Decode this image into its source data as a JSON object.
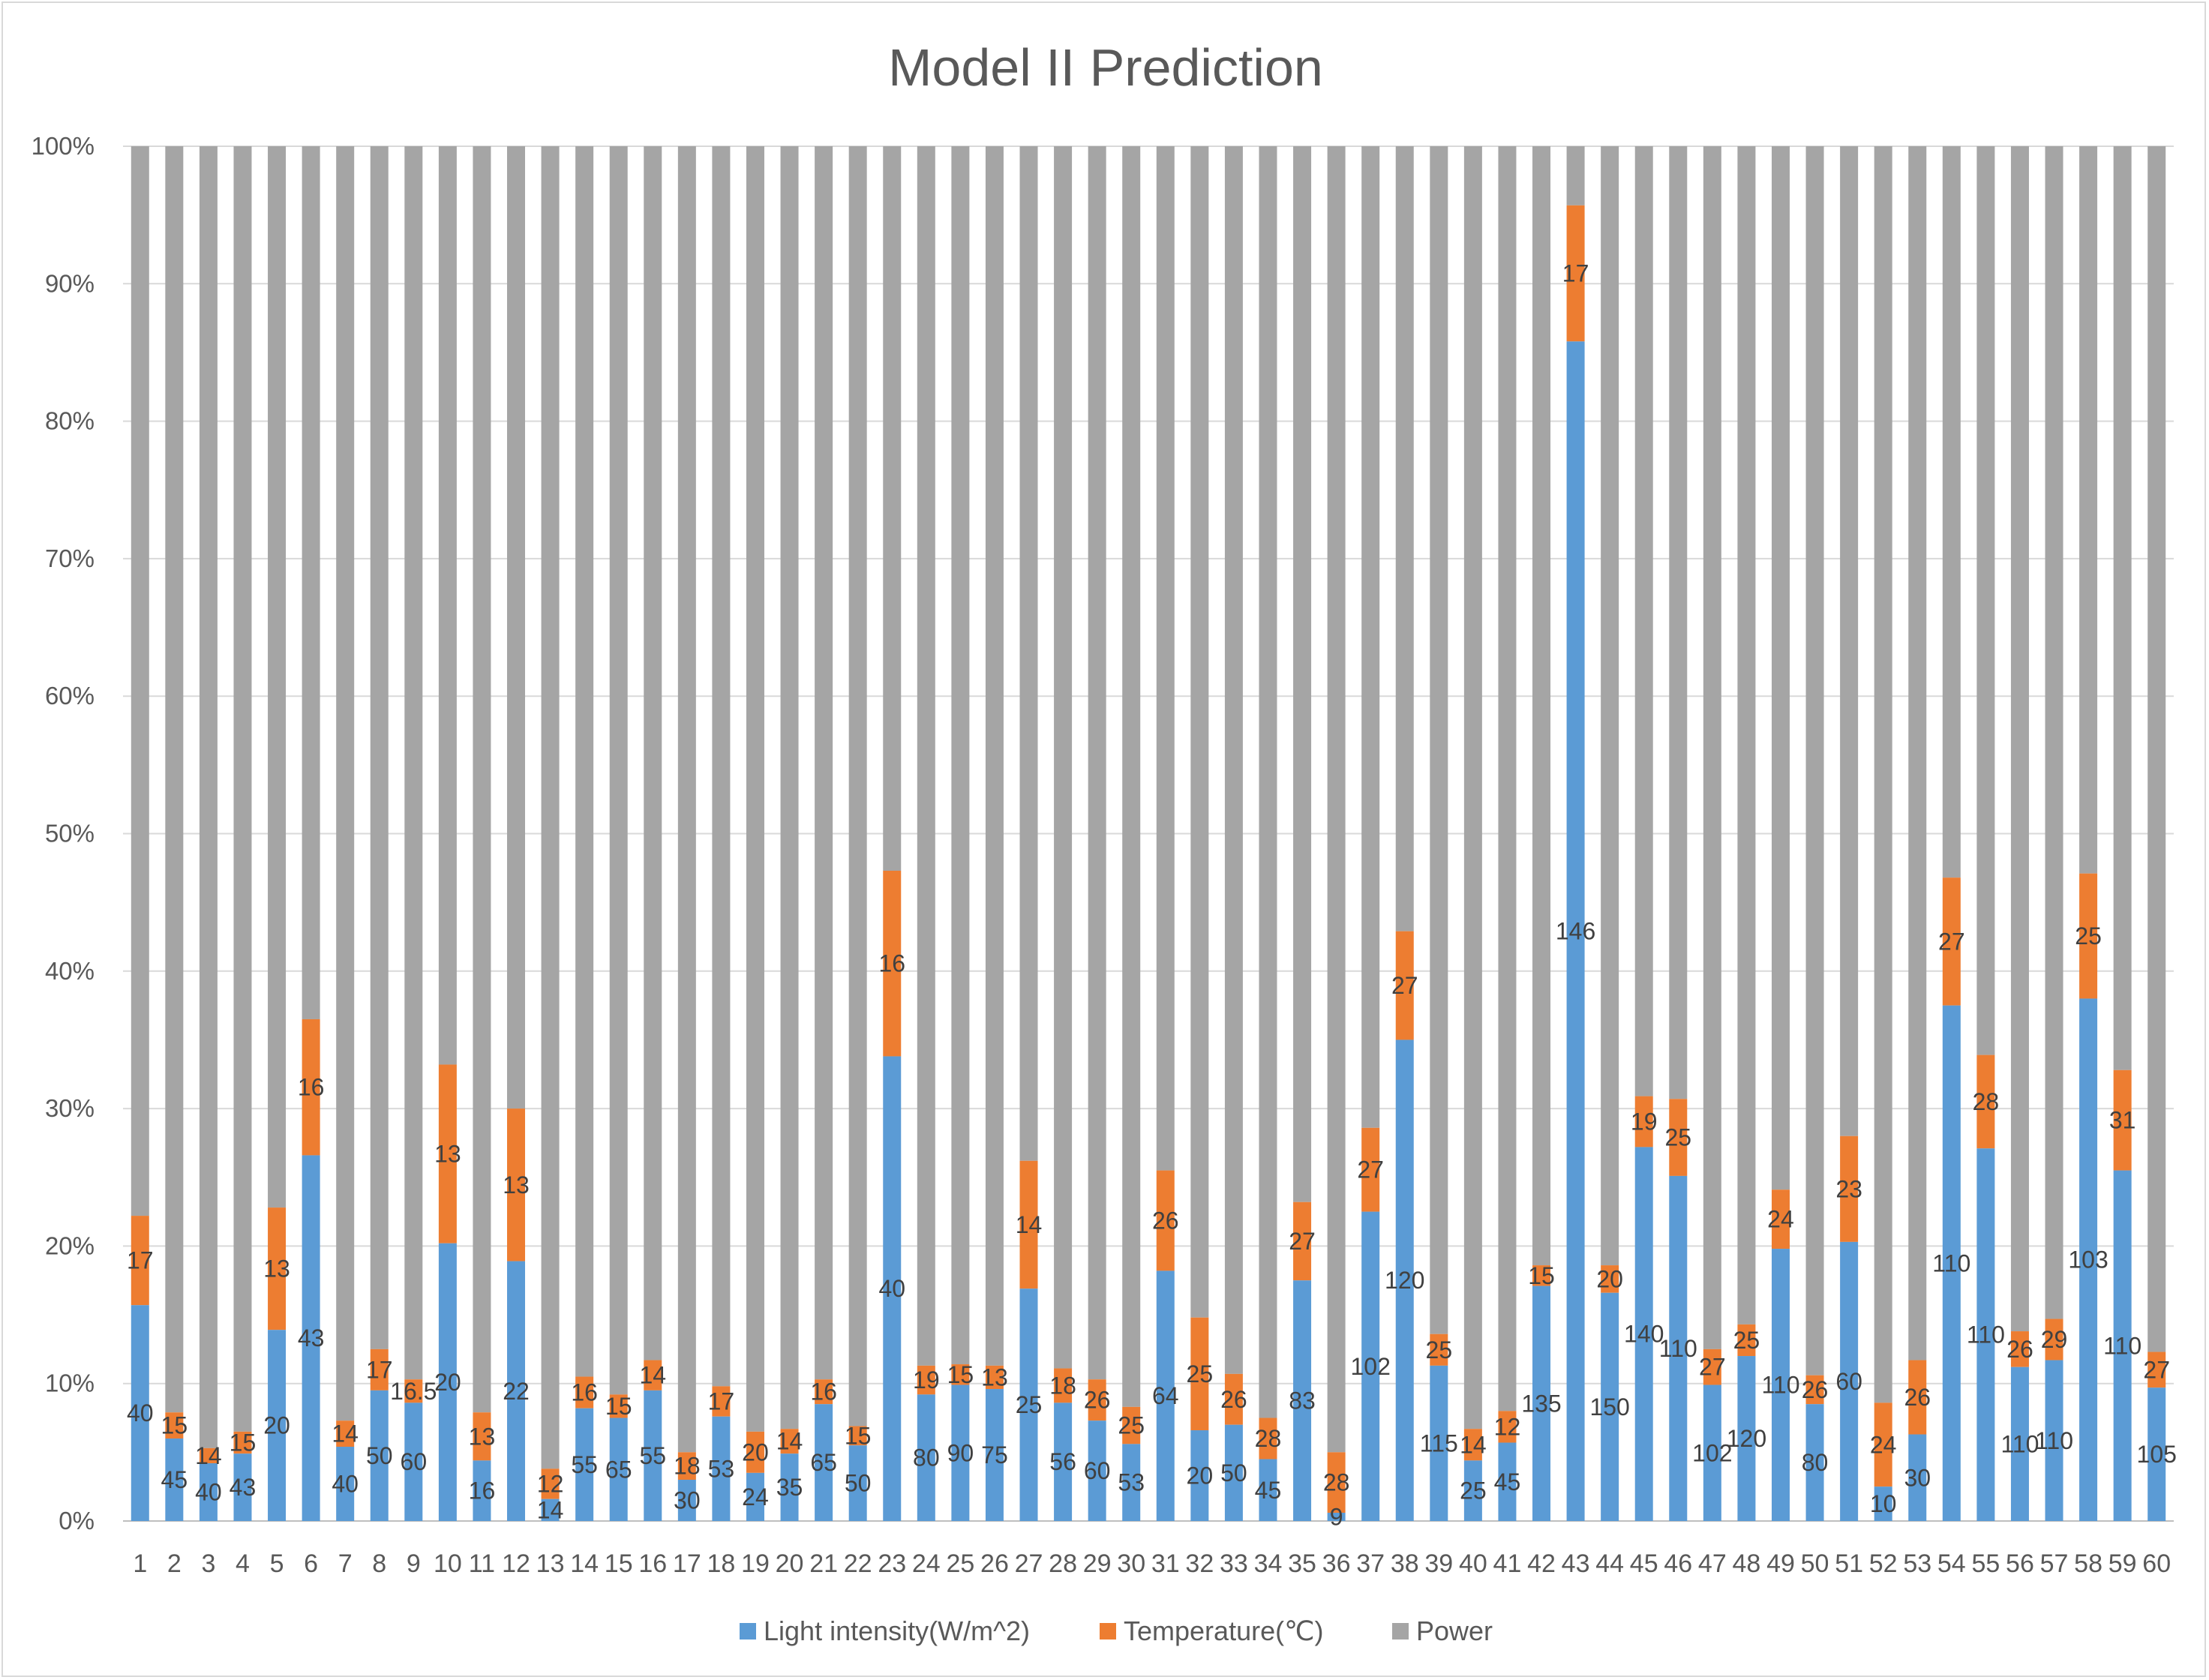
{
  "chart_data": {
    "type": "bar",
    "stacked": true,
    "normalized": true,
    "title": "Model II Prediction",
    "xlabel": "",
    "ylabel": "",
    "ylim": [
      0,
      100
    ],
    "yticks": [
      "0%",
      "10%",
      "20%",
      "30%",
      "40%",
      "50%",
      "60%",
      "70%",
      "80%",
      "90%",
      "100%"
    ],
    "grid": true,
    "legend_position": "bottom",
    "categories": [
      "1",
      "2",
      "3",
      "4",
      "5",
      "6",
      "7",
      "8",
      "9",
      "10",
      "11",
      "12",
      "13",
      "14",
      "15",
      "16",
      "17",
      "18",
      "19",
      "20",
      "21",
      "22",
      "23",
      "24",
      "25",
      "26",
      "27",
      "28",
      "29",
      "30",
      "31",
      "32",
      "33",
      "34",
      "35",
      "36",
      "37",
      "38",
      "39",
      "40",
      "41",
      "42",
      "43",
      "44",
      "45",
      "46",
      "47",
      "48",
      "49",
      "50",
      "51",
      "52",
      "53",
      "54",
      "55",
      "56",
      "57",
      "58",
      "59",
      "60"
    ],
    "series": [
      {
        "name": "Light intensity(W/m^2)",
        "color": "#5b9bd5",
        "labels": [
          "40",
          "45",
          "40",
          "43",
          "20",
          "43",
          "40",
          "50",
          "60",
          "20",
          "16",
          "22",
          "14",
          "55",
          "65",
          "55",
          "30",
          "53",
          "24",
          "35",
          "65",
          "50",
          "40",
          "80",
          "90",
          "75",
          "25",
          "56",
          "60",
          "53",
          "64",
          "20",
          "50",
          "45",
          "83",
          "9",
          "102",
          "120",
          "115",
          "25",
          "45",
          "135",
          "146",
          "150",
          "140",
          "110",
          "102",
          "120",
          "110",
          "80",
          "60",
          "10",
          "30",
          "110",
          "110",
          "110",
          "110",
          "103",
          "110",
          "105"
        ],
        "percent": [
          15.7,
          6.0,
          4.2,
          4.9,
          13.9,
          26.6,
          5.4,
          9.5,
          8.6,
          20.2,
          4.4,
          18.9,
          1.6,
          8.2,
          7.5,
          9.5,
          3.0,
          7.6,
          3.5,
          4.9,
          8.5,
          5.5,
          33.8,
          9.2,
          9.9,
          9.6,
          16.9,
          8.6,
          7.3,
          5.6,
          18.2,
          6.6,
          7.0,
          4.5,
          17.5,
          0.6,
          22.5,
          35.0,
          11.3,
          4.4,
          5.7,
          17.1,
          85.8,
          16.6,
          27.2,
          25.1,
          9.9,
          12.0,
          19.8,
          8.5,
          20.3,
          2.5,
          6.3,
          37.5,
          27.1,
          11.2,
          11.7,
          38.0,
          25.5,
          9.7
        ]
      },
      {
        "name": "Temperature(℃)",
        "color": "#ed7d31",
        "labels": [
          "17",
          "15",
          "14",
          "15",
          "13",
          "16",
          "14",
          "17",
          "16.5",
          "13",
          "13",
          "13",
          "12",
          "16",
          "15",
          "14",
          "18",
          "17",
          "20",
          "14",
          "16",
          "15",
          "16",
          "19",
          "15",
          "13",
          "14",
          "18",
          "26",
          "25",
          "26",
          "25",
          "26",
          "28",
          "27",
          "28",
          "27",
          "27",
          "25",
          "14",
          "12",
          "15",
          "17",
          "20",
          "19",
          "25",
          "27",
          "25",
          "24",
          "26",
          "23",
          "24",
          "26",
          "27",
          "28",
          "26",
          "29",
          "25",
          "31",
          "27"
        ],
        "percent": [
          6.5,
          1.9,
          1.1,
          1.6,
          8.9,
          9.9,
          1.9,
          3.0,
          1.7,
          13.0,
          3.5,
          11.1,
          2.2,
          2.3,
          1.7,
          2.2,
          2.0,
          2.2,
          3.0,
          1.8,
          1.8,
          1.4,
          13.5,
          2.1,
          1.5,
          1.7,
          9.3,
          2.5,
          3.0,
          2.7,
          7.3,
          8.2,
          3.7,
          3.0,
          5.7,
          4.4,
          6.1,
          7.9,
          2.3,
          2.3,
          2.3,
          1.5,
          9.9,
          2.0,
          3.7,
          5.6,
          2.6,
          2.3,
          4.3,
          2.1,
          7.7,
          6.1,
          5.4,
          9.3,
          6.8,
          2.6,
          3.0,
          9.1,
          7.3,
          2.6
        ]
      },
      {
        "name": "Power",
        "color": "#a5a5a5"
      }
    ]
  }
}
